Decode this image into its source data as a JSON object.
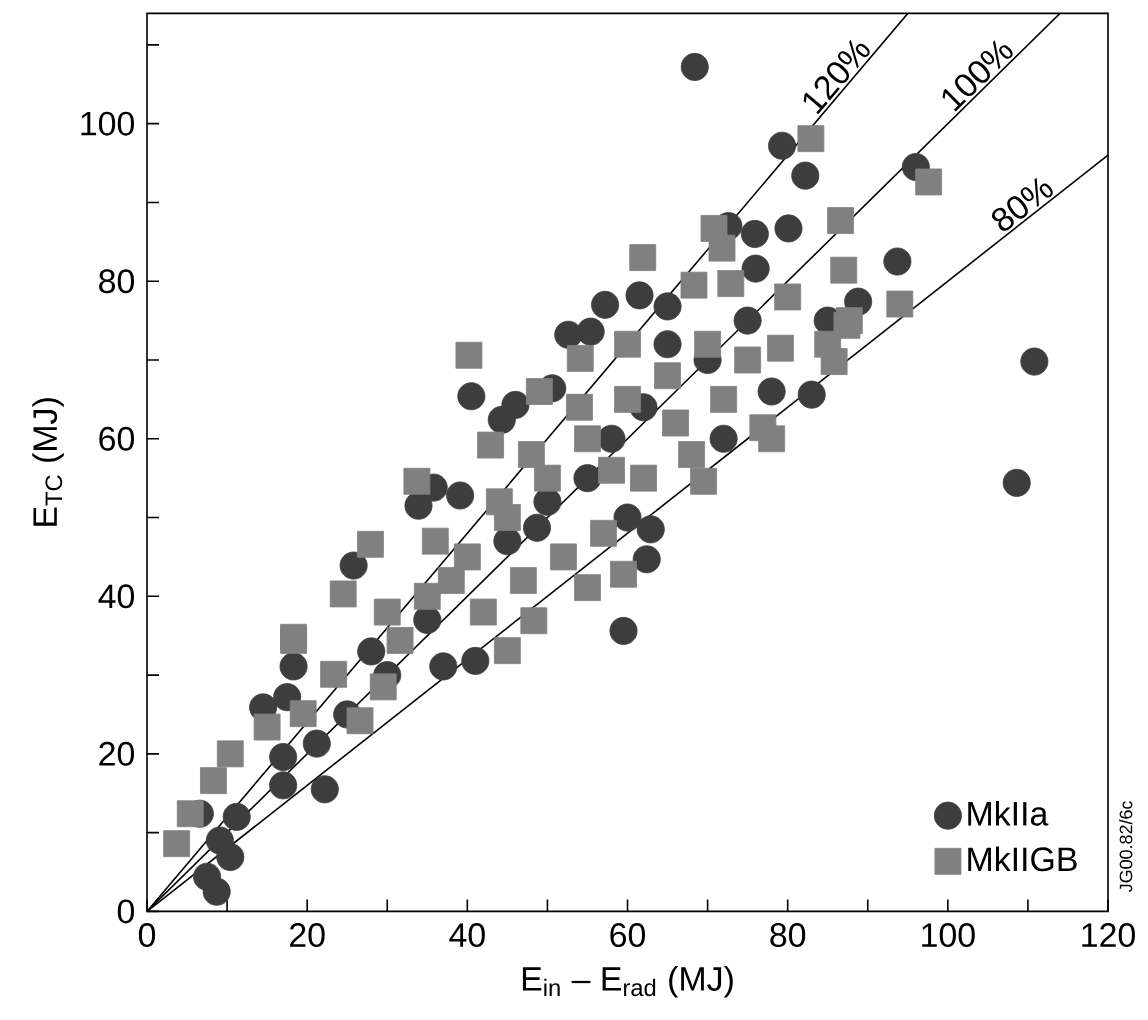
{
  "chart_data": {
    "type": "scatter",
    "xlabel": "E$_{in}$ – E$_{rad}$ (MJ)",
    "ylabel": "E$_{TC}$ (MJ)",
    "xlim": [
      0,
      120
    ],
    "ylim": [
      0,
      114
    ],
    "xticks": [
      0,
      {
        "value": 10,
        "label": null
      },
      20,
      {
        "value": 30,
        "label": null
      },
      40,
      {
        "value": 50,
        "label": null
      },
      60,
      {
        "value": 70,
        "label": null
      },
      80,
      {
        "value": 90,
        "label": null
      },
      100,
      {
        "value": 110,
        "label": null
      },
      120
    ],
    "yticks": [
      0,
      {
        "value": 10,
        "label": null
      },
      20,
      {
        "value": 30,
        "label": null
      },
      40,
      {
        "value": 50,
        "label": null
      },
      60,
      {
        "value": 70,
        "label": null
      },
      80,
      {
        "value": 90,
        "label": null
      },
      100,
      {
        "value": 110,
        "label": null
      }
    ],
    "legend": "bottom right",
    "annotations": [
      "JG00.82/6c"
    ],
    "series": [
      {
        "name": "MkIIa",
        "color": "#3d3d3d",
        "marker": "circle",
        "x": [
          68.4,
          79.3,
          82.2,
          96,
          75.9,
          80.1,
          72.6,
          93.7,
          88.8,
          76,
          57.2,
          61.5,
          65,
          110.8,
          108.6,
          83,
          62.9,
          62.4,
          59.5,
          52.6,
          55.4,
          40.5,
          46,
          44.3,
          50.6,
          35.8,
          33.9,
          39.1,
          48.7,
          25.8,
          18.3,
          14.5,
          17.5,
          6.6,
          9.1,
          10.4,
          8.7,
          7.5,
          22.2,
          17,
          21.2,
          17,
          37,
          41,
          11.2,
          62,
          58,
          65,
          70,
          75,
          78,
          55,
          50,
          45,
          30,
          28,
          25,
          35,
          72,
          85,
          60
        ],
        "values": [
          107.2,
          97.2,
          93.4,
          94.5,
          86,
          86.7,
          87,
          82.5,
          77.4,
          81.6,
          77,
          78.2,
          76.8,
          69.8,
          54.4,
          65.6,
          48.5,
          44.7,
          35.6,
          73.2,
          73.6,
          65.4,
          64.3,
          62.4,
          66.4,
          53.8,
          51.5,
          52.8,
          48.7,
          43.9,
          31.1,
          25.9,
          27.2,
          12.4,
          9,
          6.9,
          2.5,
          4.4,
          15.5,
          16,
          21.3,
          19.6,
          31.1,
          31.8,
          12,
          64,
          60,
          72,
          70,
          75,
          66,
          55,
          52,
          47,
          30,
          33,
          25,
          37,
          60,
          75,
          50
        ]
      },
      {
        "name": "MkIIGB",
        "color": "#808080",
        "marker": "square",
        "x": [
          82.9,
          97.6,
          86.6,
          61.9,
          70.8,
          71.8,
          87,
          94,
          87.7,
          72.9,
          68.3,
          87.4,
          85.8,
          76.9,
          69.5,
          59.5,
          55,
          79.1,
          40.2,
          49,
          33.7,
          27.9,
          24.5,
          18.3,
          42.9,
          54.1,
          18.3,
          3.7,
          8.3,
          10.4,
          15,
          23.3,
          31.6,
          45,
          48.3,
          26.6,
          19.5,
          5.4,
          29.5,
          35,
          40,
          45,
          50,
          55,
          60,
          65,
          70,
          75,
          62,
          57,
          52,
          47,
          42,
          38,
          66,
          72,
          80,
          85,
          78,
          60,
          58,
          48,
          44,
          30,
          36,
          54,
          68
        ],
        "values": [
          98.1,
          92.6,
          87.7,
          83,
          86.7,
          84.2,
          81.4,
          77.1,
          75,
          79.7,
          79.5,
          74.4,
          69.8,
          61.4,
          54.6,
          42.8,
          41.1,
          71.5,
          70.6,
          66,
          54.6,
          46.6,
          40.3,
          34.8,
          59.2,
          70.2,
          34.4,
          8.6,
          16.6,
          20,
          23.4,
          30.1,
          34.4,
          33.1,
          36.9,
          24.2,
          25.1,
          12.4,
          28.5,
          40,
          45,
          50,
          55,
          60,
          65,
          68,
          72,
          70,
          55,
          48,
          45,
          42,
          38,
          42,
          62,
          65,
          78,
          72,
          60,
          72,
          56,
          58,
          52,
          38,
          47,
          64,
          58
        ]
      },
      {
        "name": "120%",
        "type": "line",
        "color": "#000000",
        "marker": "none",
        "x": [
          0,
          95
        ],
        "values": [
          0,
          114
        ]
      },
      {
        "name": "100%",
        "type": "line",
        "color": "#000000",
        "marker": "none",
        "x": [
          0,
          114
        ],
        "values": [
          0,
          114
        ]
      },
      {
        "name": "80%",
        "type": "line",
        "color": "#000000",
        "marker": "none",
        "x": [
          0,
          120
        ],
        "values": [
          0,
          96
        ]
      }
    ]
  }
}
